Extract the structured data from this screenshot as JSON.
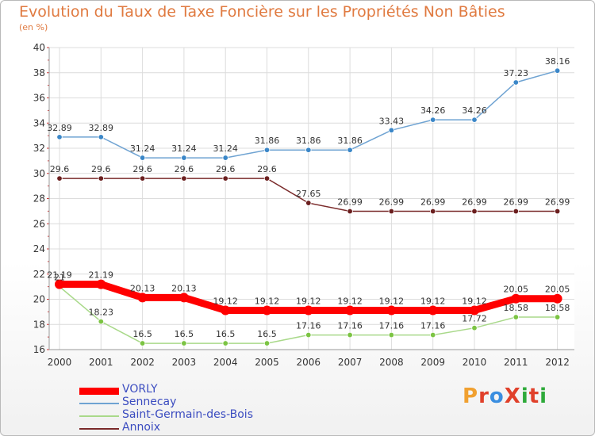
{
  "title": "Evolution du Taux de Taxe Foncière sur les Propriétés Non Bâties",
  "subtitle": "(en %)",
  "brand": {
    "text": "ProXiti",
    "colors": [
      "#f0a030",
      "#e0402a",
      "#3a8ee0",
      "#e0402a",
      "#2eaa3a",
      "#e0402a",
      "#2eaa3a"
    ]
  },
  "chart_data": {
    "type": "line",
    "x": [
      "2000",
      "2001",
      "2002",
      "2003",
      "2004",
      "2005",
      "2006",
      "2007",
      "2008",
      "2009",
      "2010",
      "2011",
      "2012"
    ],
    "ylim": [
      16,
      40
    ],
    "yticks": [
      16,
      18,
      20,
      22,
      24,
      26,
      28,
      30,
      32,
      34,
      36,
      38,
      40
    ],
    "grid": true,
    "legend_position": "bottom-left",
    "series": [
      {
        "name": "Sennecay",
        "color": "#6fa3d2",
        "marker": "#3b87c8",
        "values": [
          32.89,
          32.89,
          31.24,
          31.24,
          31.24,
          31.86,
          31.86,
          31.86,
          33.43,
          34.26,
          34.26,
          37.23,
          38.16
        ],
        "labels": [
          "32.89",
          "32.89",
          "31.24",
          "31.24",
          "31.24",
          "31.86",
          "31.86",
          "31.86",
          "33.43",
          "34.26",
          "34.26",
          "37.23",
          "38.16"
        ]
      },
      {
        "name": "Annoix",
        "color": "#7a2a2a",
        "marker": "#6b1f1f",
        "values": [
          29.6,
          29.6,
          29.6,
          29.6,
          29.6,
          29.6,
          27.65,
          26.99,
          26.99,
          26.99,
          26.99,
          26.99,
          26.99
        ],
        "labels": [
          "29.6",
          "29.6",
          "29.6",
          "29.6",
          "29.6",
          "29.6",
          "27.65",
          "26.99",
          "26.99",
          "26.99",
          "26.99",
          "26.99",
          "26.99"
        ]
      },
      {
        "name": "Saint-Germain-des-Bois",
        "color": "#a9d98a",
        "marker": "#7cc443",
        "values": [
          21,
          18.23,
          16.5,
          16.5,
          16.5,
          16.5,
          17.16,
          17.16,
          17.16,
          17.16,
          17.72,
          18.58,
          18.58
        ],
        "labels": [
          "21",
          "18.23",
          "16.5",
          "16.5",
          "16.5",
          "16.5",
          "17.16",
          "17.16",
          "17.16",
          "17.16",
          "17.72",
          "18.58",
          "18.58"
        ]
      },
      {
        "name": "VORLY",
        "color": "#ff0000",
        "marker": "#ff0000",
        "bold": true,
        "values": [
          21.19,
          21.19,
          20.13,
          20.13,
          19.12,
          19.12,
          19.12,
          19.12,
          19.12,
          19.12,
          19.12,
          20.05,
          20.05
        ],
        "labels": [
          "21.19",
          "21.19",
          "20.13",
          "20.13",
          "19.12",
          "19.12",
          "19.12",
          "19.12",
          "19.12",
          "19.12",
          "19.12",
          "20.05",
          "20.05"
        ]
      }
    ],
    "legend": [
      "VORLY",
      "Sennecay",
      "Saint-Germain-des-Bois",
      "Annoix"
    ]
  }
}
